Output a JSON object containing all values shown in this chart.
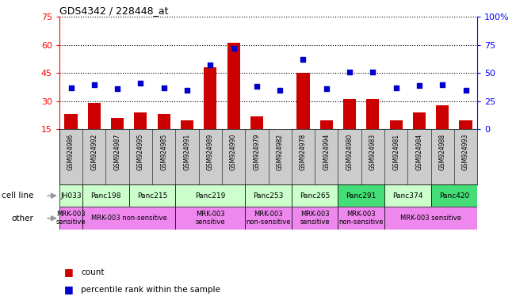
{
  "title": "GDS4342 / 228448_at",
  "samples": [
    "GSM924986",
    "GSM924992",
    "GSM924987",
    "GSM924995",
    "GSM924985",
    "GSM924991",
    "GSM924989",
    "GSM924990",
    "GSM924979",
    "GSM924982",
    "GSM924978",
    "GSM924994",
    "GSM924980",
    "GSM924983",
    "GSM924981",
    "GSM924984",
    "GSM924988",
    "GSM924993"
  ],
  "counts": [
    23,
    29,
    21,
    24,
    23,
    20,
    48,
    61,
    22,
    15,
    45,
    20,
    31,
    31,
    20,
    24,
    28,
    20
  ],
  "percentiles": [
    37,
    40,
    36,
    41,
    37,
    35,
    57,
    72,
    38,
    35,
    62,
    36,
    51,
    51,
    37,
    39,
    40,
    35
  ],
  "cell_lines": [
    {
      "label": "JH033",
      "start": 0,
      "end": 1,
      "color": "#ccffcc"
    },
    {
      "label": "Panc198",
      "start": 1,
      "end": 3,
      "color": "#ccffcc"
    },
    {
      "label": "Panc215",
      "start": 3,
      "end": 5,
      "color": "#ccffcc"
    },
    {
      "label": "Panc219",
      "start": 5,
      "end": 8,
      "color": "#ccffcc"
    },
    {
      "label": "Panc253",
      "start": 8,
      "end": 10,
      "color": "#ccffcc"
    },
    {
      "label": "Panc265",
      "start": 10,
      "end": 12,
      "color": "#ccffcc"
    },
    {
      "label": "Panc291",
      "start": 12,
      "end": 14,
      "color": "#44dd77"
    },
    {
      "label": "Panc374",
      "start": 14,
      "end": 16,
      "color": "#ccffcc"
    },
    {
      "label": "Panc420",
      "start": 16,
      "end": 18,
      "color": "#44dd77"
    }
  ],
  "other_rows": [
    {
      "label": "MRK-003\nsensitive",
      "start": 0,
      "end": 1,
      "color": "#ee88ee"
    },
    {
      "label": "MRK-003 non-sensitive",
      "start": 1,
      "end": 5,
      "color": "#ee88ee"
    },
    {
      "label": "MRK-003\nsensitive",
      "start": 5,
      "end": 8,
      "color": "#ee88ee"
    },
    {
      "label": "MRK-003\nnon-sensitive",
      "start": 8,
      "end": 10,
      "color": "#ee88ee"
    },
    {
      "label": "MRK-003\nsensitive",
      "start": 10,
      "end": 12,
      "color": "#ee88ee"
    },
    {
      "label": "MRK-003\nnon-sensitive",
      "start": 12,
      "end": 14,
      "color": "#ee88ee"
    },
    {
      "label": "MRK-003 sensitive",
      "start": 14,
      "end": 18,
      "color": "#ee88ee"
    }
  ],
  "ylim_left": [
    15,
    75
  ],
  "ylim_right": [
    0,
    100
  ],
  "yticks_left": [
    15,
    30,
    45,
    60,
    75
  ],
  "yticks_right": [
    0,
    25,
    50,
    75,
    100
  ],
  "bar_color": "#cc0000",
  "dot_color": "#0000cc",
  "tick_bg_color": "#cccccc",
  "left_label_color": "#888888"
}
